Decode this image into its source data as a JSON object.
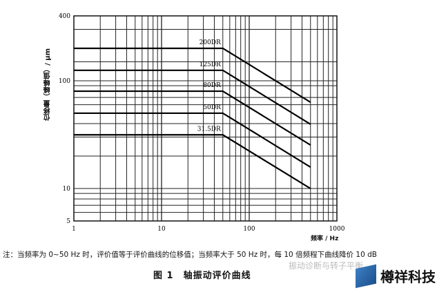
{
  "chart_data": {
    "type": "line",
    "title": "",
    "xlabel": "频率 / Hz",
    "ylabel": "位移量（峰峰值）/ μm",
    "x_scale": "log",
    "y_scale": "log",
    "xlim": [
      1,
      1000
    ],
    "ylim": [
      5,
      400
    ],
    "grid": true,
    "x_ticks": [
      {
        "value": 1,
        "label": "1"
      },
      {
        "value": 10,
        "label": "10"
      },
      {
        "value": 100,
        "label": "100"
      },
      {
        "value": 1000,
        "label": "1000"
      }
    ],
    "y_ticks": [
      {
        "value": 5,
        "label": "5"
      },
      {
        "value": 10,
        "label": "10"
      },
      {
        "value": 100,
        "label": "100"
      },
      {
        "value": 400,
        "label": "400"
      }
    ],
    "series": [
      {
        "name": "200DR",
        "points": [
          [
            1,
            200
          ],
          [
            50,
            200
          ],
          [
            500,
            63.2
          ]
        ]
      },
      {
        "name": "125DR",
        "points": [
          [
            1,
            125
          ],
          [
            50,
            125
          ],
          [
            500,
            39.5
          ]
        ]
      },
      {
        "name": "80DR",
        "points": [
          [
            1,
            80
          ],
          [
            50,
            80
          ],
          [
            500,
            25.3
          ]
        ]
      },
      {
        "name": "50DR",
        "points": [
          [
            1,
            50
          ],
          [
            50,
            50
          ],
          [
            500,
            15.8
          ]
        ]
      },
      {
        "name": "31.5DR",
        "points": [
          [
            1,
            31.5
          ],
          [
            50,
            31.5
          ],
          [
            500,
            10
          ]
        ]
      }
    ]
  },
  "note": "注：当频率为 0~50 Hz 时，评价值等于评价曲线的位移值；当频率大于 50 Hz 时，每 10 倍频程下曲线降价 10 dB",
  "caption": "图 1　轴振动评价曲线",
  "watermark": "振动诊断与转子平衡",
  "logo": "樽祥科技"
}
